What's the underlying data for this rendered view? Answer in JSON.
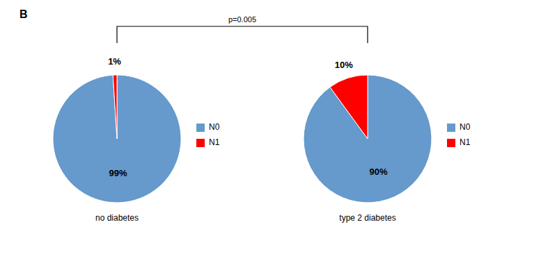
{
  "chart_data": [
    {
      "type": "pie",
      "title": "no diabetes",
      "categories": [
        "N0",
        "N1"
      ],
      "values": [
        99,
        1
      ],
      "value_labels": [
        "99%",
        "1%"
      ],
      "colors": [
        "#6699CC",
        "#FF0000"
      ],
      "data_labels": true,
      "legend": "right"
    },
    {
      "type": "pie",
      "title": "type 2 diabetes",
      "categories": [
        "N0",
        "N1"
      ],
      "values": [
        90,
        10
      ],
      "value_labels": [
        "90%",
        "10%"
      ],
      "colors": [
        "#6699CC",
        "#FF0000"
      ],
      "data_labels": true,
      "legend": "right"
    }
  ],
  "annotations": [
    "B",
    "p=0.005"
  ]
}
